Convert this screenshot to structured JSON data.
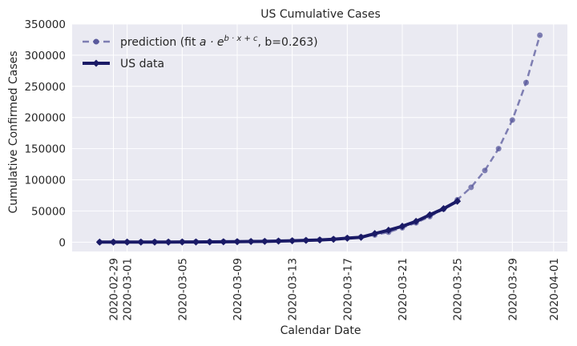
{
  "chart_data": {
    "type": "line",
    "title": "US Cumulative Cases",
    "xlabel": "Calendar Date",
    "ylabel": "Cumulative Confirmed Cases",
    "xlim": [
      "2020-02-26",
      "2020-04-02"
    ],
    "ylim": [
      -15000,
      350000
    ],
    "x_ticks": [
      "2020-02-29",
      "2020-03-01",
      "2020-03-05",
      "2020-03-09",
      "2020-03-13",
      "2020-03-17",
      "2020-03-21",
      "2020-03-25",
      "2020-03-29",
      "2020-04-01"
    ],
    "y_ticks": [
      0,
      50000,
      100000,
      150000,
      200000,
      250000,
      300000,
      350000
    ],
    "grid": true,
    "background_color": "#eaeaf2",
    "legend_position": "top-left",
    "series": [
      {
        "name": "prediction (fit a·e^(b·x+c), b=0.263)",
        "legend_prefix": "prediction (fit ",
        "legend_math": "a · e",
        "legend_superscript": "b · x + c",
        "legend_suffix": ", b=0.263)",
        "style": "dashed",
        "marker": "circle",
        "color": "#5a5a9c",
        "x": [
          "2020-02-28",
          "2020-02-29",
          "2020-03-01",
          "2020-03-02",
          "2020-03-03",
          "2020-03-04",
          "2020-03-05",
          "2020-03-06",
          "2020-03-07",
          "2020-03-08",
          "2020-03-09",
          "2020-03-10",
          "2020-03-11",
          "2020-03-12",
          "2020-03-13",
          "2020-03-14",
          "2020-03-15",
          "2020-03-16",
          "2020-03-17",
          "2020-03-18",
          "2020-03-19",
          "2020-03-20",
          "2020-03-21",
          "2020-03-22",
          "2020-03-23",
          "2020-03-24",
          "2020-03-25",
          "2020-03-26",
          "2020-03-27",
          "2020-03-28",
          "2020-03-29",
          "2020-03-30",
          "2020-03-31"
        ],
        "values": [
          0,
          100,
          200,
          300,
          400,
          500,
          600,
          700,
          800,
          900,
          1100,
          1300,
          1600,
          2000,
          2500,
          3100,
          3900,
          5000,
          6500,
          8500,
          11500,
          16000,
          23000,
          31000,
          41000,
          53000,
          68000,
          88000,
          115000,
          150000,
          196000,
          256000,
          332000
        ]
      },
      {
        "name": "US data",
        "style": "solid",
        "marker": "diamond",
        "color": "#1a1a66",
        "x": [
          "2020-02-28",
          "2020-02-29",
          "2020-03-01",
          "2020-03-02",
          "2020-03-03",
          "2020-03-04",
          "2020-03-05",
          "2020-03-06",
          "2020-03-07",
          "2020-03-08",
          "2020-03-09",
          "2020-03-10",
          "2020-03-11",
          "2020-03-12",
          "2020-03-13",
          "2020-03-14",
          "2020-03-15",
          "2020-03-16",
          "2020-03-17",
          "2020-03-18",
          "2020-03-19",
          "2020-03-20",
          "2020-03-21",
          "2020-03-22",
          "2020-03-23",
          "2020-03-24",
          "2020-03-25"
        ],
        "values": [
          60,
          70,
          80,
          100,
          130,
          160,
          230,
          320,
          440,
          550,
          700,
          1000,
          1300,
          1700,
          2200,
          2900,
          3500,
          4600,
          6400,
          7800,
          13700,
          19100,
          25500,
          33300,
          43800,
          53700,
          65700
        ]
      }
    ]
  }
}
